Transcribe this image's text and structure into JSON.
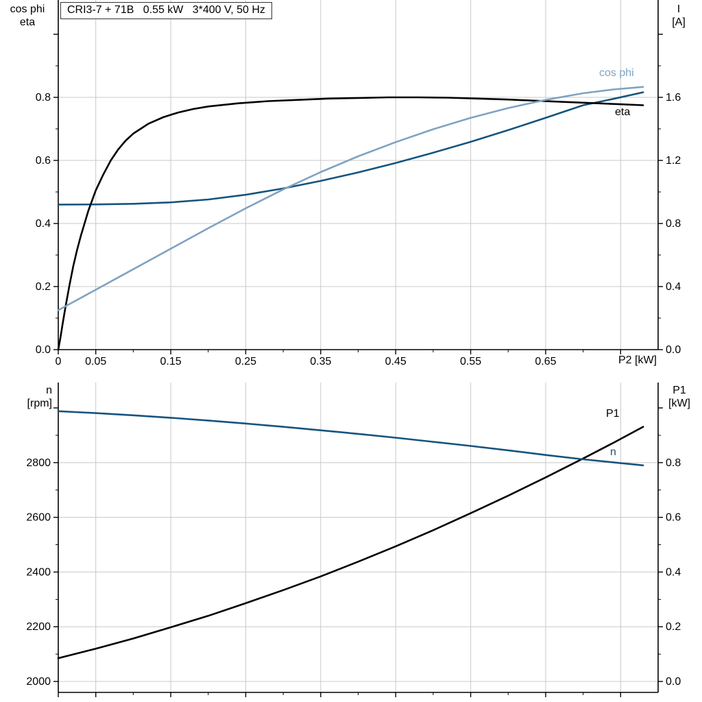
{
  "colors": {
    "black": "#000000",
    "dark_blue": "#16537e",
    "light_blue": "#7fa2c3",
    "grid": "#c8c8c8",
    "axis": "#000000"
  },
  "chart_data": [
    {
      "type": "line",
      "title": "CRI3-7 + 71B   0.55 kW   3*400 V, 50 Hz",
      "x_axis": {
        "label": "P2 [kW]",
        "range": [
          0,
          0.8
        ],
        "ticks": [
          0,
          0.05,
          0.15,
          0.25,
          0.35,
          0.45,
          0.55,
          0.65,
          0.75
        ],
        "tick_labels": [
          "0",
          "0.05",
          "0.15",
          "0.25",
          "0.35",
          "0.45",
          "0.55",
          "0.65",
          ""
        ],
        "minor_ticks": [
          0.1,
          0.2,
          0.3,
          0.4,
          0.5,
          0.6,
          0.7
        ],
        "grid": [
          0.05,
          0.15,
          0.25,
          0.35,
          0.45,
          0.55,
          0.65,
          0.75
        ]
      },
      "y_left": {
        "name_line1": "cos phi",
        "name_line2": "eta",
        "range": [
          0,
          1.1087
        ],
        "ticks": [
          0,
          0.2,
          0.4,
          0.6,
          0.8,
          1.0
        ],
        "tick_labels": [
          "0.0",
          "0.2",
          "0.4",
          "0.6",
          "0.8",
          ""
        ],
        "minor_ticks": [
          0.1,
          0.3,
          0.5,
          0.7,
          0.9
        ],
        "grid": [
          0.2,
          0.4,
          0.6,
          0.8
        ]
      },
      "y_right": {
        "name_line1": "I",
        "name_line2": "[A]",
        "range": [
          0,
          2.2174
        ],
        "ticks": [
          0,
          0.4,
          0.8,
          1.2,
          1.6,
          2.0
        ],
        "tick_labels": [
          "0.0",
          "0.4",
          "0.8",
          "1.2",
          "1.6",
          ""
        ],
        "minor_ticks": [
          0.2,
          0.6,
          1.0,
          1.4,
          1.8
        ],
        "grid": []
      },
      "series": [
        {
          "id": "current",
          "label_text": "",
          "axis": "right",
          "color": "dark_blue",
          "points": [
            [
              0,
              0.92
            ],
            [
              0.05,
              0.921
            ],
            [
              0.1,
              0.925
            ],
            [
              0.15,
              0.934
            ],
            [
              0.2,
              0.952
            ],
            [
              0.25,
              0.982
            ],
            [
              0.3,
              1.022
            ],
            [
              0.35,
              1.07
            ],
            [
              0.4,
              1.124
            ],
            [
              0.45,
              1.184
            ],
            [
              0.5,
              1.249
            ],
            [
              0.55,
              1.318
            ],
            [
              0.6,
              1.392
            ],
            [
              0.65,
              1.47
            ],
            [
              0.7,
              1.55
            ],
            [
              0.74,
              1.59
            ],
            [
              0.78,
              1.632
            ]
          ]
        },
        {
          "id": "eta",
          "label_text": "eta",
          "axis": "left",
          "color": "black",
          "points": [
            [
              0,
              0
            ],
            [
              0.003,
              0.04
            ],
            [
              0.006,
              0.085
            ],
            [
              0.01,
              0.14
            ],
            [
              0.015,
              0.205
            ],
            [
              0.02,
              0.265
            ],
            [
              0.025,
              0.315
            ],
            [
              0.03,
              0.36
            ],
            [
              0.04,
              0.44
            ],
            [
              0.05,
              0.505
            ],
            [
              0.06,
              0.555
            ],
            [
              0.07,
              0.6
            ],
            [
              0.08,
              0.635
            ],
            [
              0.09,
              0.663
            ],
            [
              0.1,
              0.685
            ],
            [
              0.12,
              0.716
            ],
            [
              0.14,
              0.737
            ],
            [
              0.16,
              0.752
            ],
            [
              0.18,
              0.763
            ],
            [
              0.2,
              0.771
            ],
            [
              0.24,
              0.781
            ],
            [
              0.28,
              0.788
            ],
            [
              0.32,
              0.792
            ],
            [
              0.36,
              0.796
            ],
            [
              0.4,
              0.798
            ],
            [
              0.44,
              0.8
            ],
            [
              0.48,
              0.8
            ],
            [
              0.52,
              0.799
            ],
            [
              0.56,
              0.796
            ],
            [
              0.6,
              0.793
            ],
            [
              0.64,
              0.789
            ],
            [
              0.68,
              0.785
            ],
            [
              0.72,
              0.781
            ],
            [
              0.75,
              0.778
            ],
            [
              0.78,
              0.775
            ]
          ]
        },
        {
          "id": "cos-phi",
          "label_text": "cos phi",
          "axis": "left",
          "color": "light_blue",
          "points": [
            [
              0,
              0.125
            ],
            [
              0.05,
              0.19
            ],
            [
              0.1,
              0.255
            ],
            [
              0.15,
              0.32
            ],
            [
              0.2,
              0.385
            ],
            [
              0.25,
              0.448
            ],
            [
              0.3,
              0.508
            ],
            [
              0.35,
              0.563
            ],
            [
              0.4,
              0.613
            ],
            [
              0.45,
              0.658
            ],
            [
              0.5,
              0.699
            ],
            [
              0.55,
              0.735
            ],
            [
              0.6,
              0.766
            ],
            [
              0.65,
              0.792
            ],
            [
              0.7,
              0.813
            ],
            [
              0.74,
              0.825
            ],
            [
              0.78,
              0.833
            ]
          ]
        }
      ]
    },
    {
      "type": "line",
      "title": "",
      "x_axis": {
        "label": "",
        "range": [
          0,
          0.8
        ],
        "ticks": [
          0,
          0.05,
          0.15,
          0.25,
          0.35,
          0.45,
          0.55,
          0.65,
          0.75
        ],
        "tick_labels": [
          "",
          "",
          "",
          "",
          "",
          "",
          "",
          "",
          ""
        ],
        "minor_ticks": [
          0.1,
          0.2,
          0.3,
          0.4,
          0.5,
          0.6,
          0.7
        ],
        "grid": [
          0.05,
          0.15,
          0.25,
          0.35,
          0.45,
          0.55,
          0.65,
          0.75
        ]
      },
      "y_left": {
        "name_line1": "n",
        "name_line2": "[rpm]",
        "range": [
          1960,
          3092.8
        ],
        "ticks": [
          2000,
          2200,
          2400,
          2600,
          2800,
          3000
        ],
        "tick_labels": [
          "2000",
          "2200",
          "2400",
          "2600",
          "2800",
          ""
        ],
        "minor_ticks": [
          2100,
          2300,
          2500,
          2700,
          2900
        ],
        "grid": [
          2000,
          2200,
          2400,
          2600,
          2800
        ]
      },
      "y_right": {
        "name_line1": "P1",
        "name_line2": "[kW]",
        "range": [
          -0.04,
          1.0928
        ],
        "ticks": [
          0,
          0.2,
          0.4,
          0.6,
          0.8,
          1.0
        ],
        "tick_labels": [
          "0.0",
          "0.2",
          "0.4",
          "0.6",
          "0.8",
          ""
        ],
        "minor_ticks": [
          0.1,
          0.3,
          0.5,
          0.7,
          0.9
        ],
        "grid": []
      },
      "series": [
        {
          "id": "p1",
          "label_text": "P1",
          "axis": "right",
          "color": "black",
          "points": [
            [
              0,
              0.085
            ],
            [
              0.05,
              0.12
            ],
            [
              0.1,
              0.157
            ],
            [
              0.15,
              0.198
            ],
            [
              0.2,
              0.24
            ],
            [
              0.25,
              0.286
            ],
            [
              0.3,
              0.334
            ],
            [
              0.35,
              0.384
            ],
            [
              0.4,
              0.438
            ],
            [
              0.45,
              0.494
            ],
            [
              0.5,
              0.553
            ],
            [
              0.55,
              0.615
            ],
            [
              0.6,
              0.679
            ],
            [
              0.65,
              0.746
            ],
            [
              0.7,
              0.815
            ],
            [
              0.74,
              0.872
            ],
            [
              0.78,
              0.931
            ]
          ]
        },
        {
          "id": "n",
          "label_text": "n",
          "axis": "left",
          "color": "dark_blue",
          "points": [
            [
              0,
              2988
            ],
            [
              0.05,
              2981
            ],
            [
              0.1,
              2973
            ],
            [
              0.15,
              2964
            ],
            [
              0.2,
              2954
            ],
            [
              0.25,
              2943
            ],
            [
              0.3,
              2931
            ],
            [
              0.35,
              2918
            ],
            [
              0.4,
              2905
            ],
            [
              0.45,
              2891
            ],
            [
              0.5,
              2876
            ],
            [
              0.55,
              2861
            ],
            [
              0.6,
              2845
            ],
            [
              0.65,
              2828
            ],
            [
              0.7,
              2812
            ],
            [
              0.74,
              2801
            ],
            [
              0.78,
              2790
            ]
          ]
        }
      ]
    }
  ]
}
